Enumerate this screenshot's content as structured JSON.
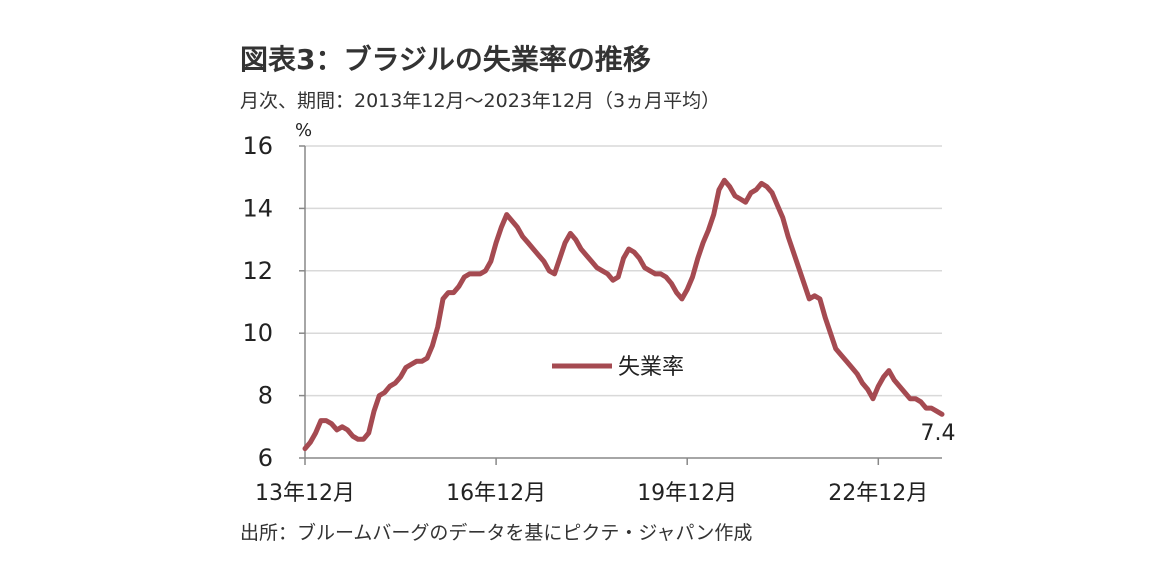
{
  "title": "図表3：ブラジルの失業率の推移",
  "subtitle": "月次、期間：2013年12月～2023年12月（3ヵ月平均）",
  "source": "出所：ブルームバーグのデータを基にピクテ・ジャパン作成",
  "colors": {
    "series": "#a54a51",
    "grid": "#d9d9d9",
    "axis": "#888888"
  },
  "chart_data": {
    "type": "line",
    "title": "図表3：ブラジルの失業率の推移",
    "subtitle": "月次、期間：2013年12月～2023年12月（3ヵ月平均）",
    "ylabel": "%",
    "ylim": [
      6,
      16
    ],
    "yticks": [
      6,
      8,
      10,
      12,
      14,
      16
    ],
    "xtick_labels": [
      "13年12月",
      "16年12月",
      "19年12月",
      "22年12月"
    ],
    "xtick_index": [
      0,
      36,
      72,
      108
    ],
    "grid": true,
    "legend_position": "center",
    "end_label": "7.4",
    "series": [
      {
        "name": "失業率",
        "color": "#a54a51",
        "values": [
          6.3,
          6.5,
          6.8,
          7.2,
          7.2,
          7.1,
          6.9,
          7.0,
          6.9,
          6.7,
          6.6,
          6.6,
          6.8,
          7.5,
          8.0,
          8.1,
          8.3,
          8.4,
          8.6,
          8.9,
          9.0,
          9.1,
          9.1,
          9.2,
          9.6,
          10.2,
          11.1,
          11.3,
          11.3,
          11.5,
          11.8,
          11.9,
          11.9,
          11.9,
          12.0,
          12.3,
          12.9,
          13.4,
          13.8,
          13.6,
          13.4,
          13.1,
          12.9,
          12.7,
          12.5,
          12.3,
          12.0,
          11.9,
          12.4,
          12.9,
          13.2,
          13.0,
          12.7,
          12.5,
          12.3,
          12.1,
          12.0,
          11.9,
          11.7,
          11.8,
          12.4,
          12.7,
          12.6,
          12.4,
          12.1,
          12.0,
          11.9,
          11.9,
          11.8,
          11.6,
          11.3,
          11.1,
          11.4,
          11.8,
          12.4,
          12.9,
          13.3,
          13.8,
          14.6,
          14.9,
          14.7,
          14.4,
          14.3,
          14.2,
          14.5,
          14.6,
          14.8,
          14.7,
          14.5,
          14.1,
          13.7,
          13.1,
          12.6,
          12.1,
          11.6,
          11.1,
          11.2,
          11.1,
          10.5,
          10.0,
          9.5,
          9.3,
          9.1,
          8.9,
          8.7,
          8.4,
          8.2,
          7.9,
          8.3,
          8.6,
          8.8,
          8.5,
          8.3,
          8.1,
          7.9,
          7.9,
          7.8,
          7.6,
          7.6,
          7.5,
          7.4
        ]
      }
    ]
  }
}
